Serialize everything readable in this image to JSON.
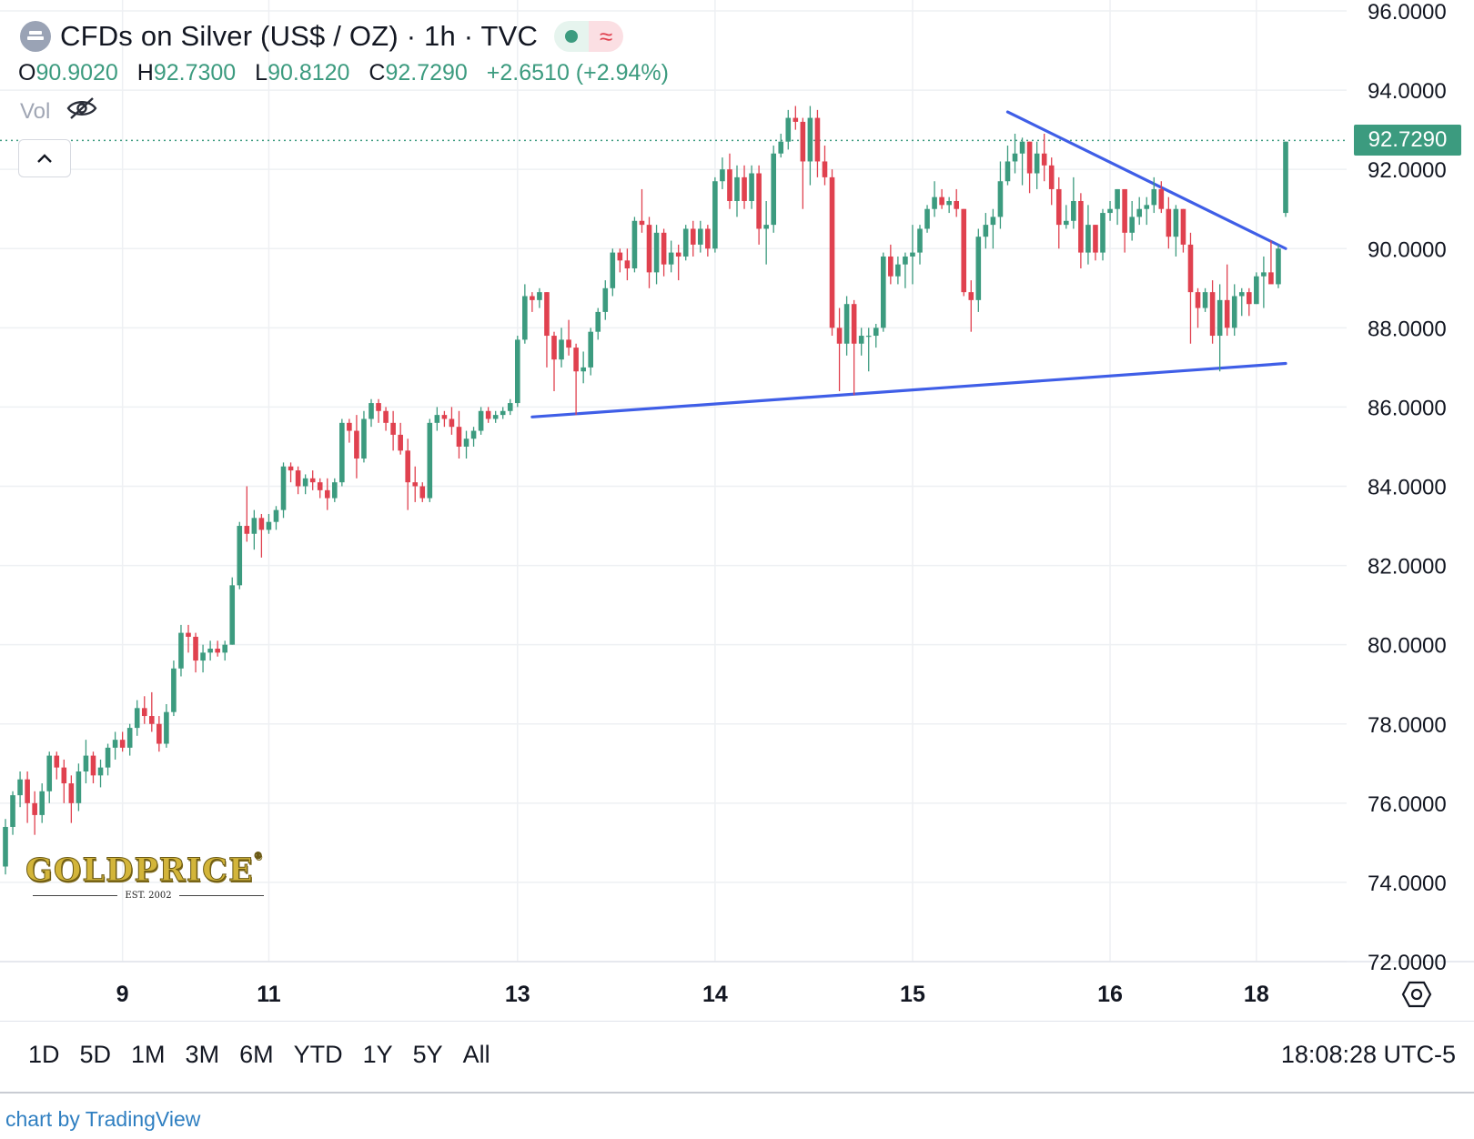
{
  "header": {
    "title": "CFDs on Silver (US$ / OZ) · 1h · TVC",
    "market_status": "open",
    "data_mode_glyph": "≈",
    "symbol_icon": "silver-bars-icon"
  },
  "ohlc": {
    "open_label": "O",
    "open": "90.9020",
    "high_label": "H",
    "high": "92.7300",
    "low_label": "L",
    "low": "90.8120",
    "close_label": "C",
    "close": "92.7290",
    "change": "+2.6510 (+2.94%)"
  },
  "volume": {
    "label": "Vol",
    "icon": "eye-off-icon"
  },
  "collapse_icon": "chevron-up-icon",
  "last_price": "92.7290",
  "colors": {
    "up": "#3c9b7f",
    "down": "#e0414f",
    "trendline": "#3f5ee7",
    "grid": "#eef0f3"
  },
  "watermark": {
    "brand": "GOLDPRICE",
    "reg": "®",
    "est": "EST. 2002"
  },
  "range_buttons": [
    "1D",
    "5D",
    "1M",
    "3M",
    "6M",
    "YTD",
    "1Y",
    "5Y",
    "All"
  ],
  "clock": "18:08:28 UTC-5",
  "credit": "chart by TradingView",
  "chart_data": {
    "type": "candlestick",
    "title": "CFDs on Silver (US$ / OZ)",
    "interval": "1h",
    "ylim": [
      72,
      96
    ],
    "y_ticks": [
      "72.0000",
      "74.0000",
      "76.0000",
      "78.0000",
      "80.0000",
      "82.0000",
      "84.0000",
      "86.0000",
      "88.0000",
      "90.0000",
      "92.0000",
      "94.0000",
      "96.0000"
    ],
    "x_tick_labels": [
      "9",
      "11",
      "13",
      "14",
      "15",
      "16",
      "18"
    ],
    "x_tick_index": [
      16,
      36,
      70,
      97,
      124,
      151,
      171
    ],
    "grid": true,
    "last_price_line": 92.729,
    "candles": [
      [
        74.4,
        75.6,
        74.2,
        75.4
      ],
      [
        75.4,
        76.3,
        75.2,
        76.2
      ],
      [
        76.2,
        76.8,
        75.9,
        76.6
      ],
      [
        76.6,
        76.8,
        75.5,
        76.0
      ],
      [
        76.0,
        76.3,
        75.2,
        75.7
      ],
      [
        75.7,
        76.5,
        75.5,
        76.3
      ],
      [
        76.3,
        77.3,
        76.0,
        77.2
      ],
      [
        77.2,
        77.3,
        76.6,
        76.9
      ],
      [
        76.9,
        77.1,
        76.0,
        76.5
      ],
      [
        76.5,
        76.7,
        75.5,
        76.0
      ],
      [
        76.0,
        77.0,
        75.8,
        76.8
      ],
      [
        76.8,
        77.6,
        76.5,
        77.2
      ],
      [
        77.2,
        77.3,
        76.5,
        76.7
      ],
      [
        76.7,
        77.1,
        76.4,
        76.9
      ],
      [
        76.9,
        77.5,
        76.7,
        77.4
      ],
      [
        77.4,
        77.8,
        77.1,
        77.6
      ],
      [
        77.6,
        77.8,
        77.3,
        77.4
      ],
      [
        77.4,
        78.0,
        77.2,
        77.9
      ],
      [
        77.9,
        78.6,
        77.7,
        78.4
      ],
      [
        78.4,
        78.7,
        78.0,
        78.2
      ],
      [
        78.2,
        78.8,
        77.8,
        78.0
      ],
      [
        78.0,
        78.2,
        77.3,
        77.5
      ],
      [
        77.5,
        78.5,
        77.4,
        78.3
      ],
      [
        78.3,
        79.6,
        78.2,
        79.4
      ],
      [
        79.4,
        80.5,
        79.2,
        80.3
      ],
      [
        80.3,
        80.5,
        79.8,
        80.2
      ],
      [
        80.2,
        80.3,
        79.3,
        79.6
      ],
      [
        79.6,
        80.0,
        79.3,
        79.8
      ],
      [
        79.8,
        80.1,
        79.6,
        79.9
      ],
      [
        79.9,
        80.1,
        79.7,
        79.8
      ],
      [
        79.8,
        80.1,
        79.6,
        80.0
      ],
      [
        80.0,
        81.7,
        80.0,
        81.5
      ],
      [
        81.5,
        83.1,
        81.4,
        83.0
      ],
      [
        83.0,
        84.0,
        82.6,
        82.8
      ],
      [
        82.8,
        83.4,
        82.4,
        83.2
      ],
      [
        83.2,
        83.3,
        82.2,
        82.9
      ],
      [
        82.9,
        83.3,
        82.8,
        83.1
      ],
      [
        83.1,
        83.5,
        82.9,
        83.4
      ],
      [
        83.4,
        84.6,
        83.2,
        84.5
      ],
      [
        84.5,
        84.6,
        84.1,
        84.4
      ],
      [
        84.4,
        84.5,
        83.8,
        84.0
      ],
      [
        84.0,
        84.3,
        83.8,
        84.2
      ],
      [
        84.2,
        84.4,
        83.9,
        84.1
      ],
      [
        84.1,
        84.2,
        83.7,
        83.9
      ],
      [
        83.9,
        84.2,
        83.4,
        83.7
      ],
      [
        83.7,
        84.2,
        83.6,
        84.1
      ],
      [
        84.1,
        85.7,
        84.0,
        85.6
      ],
      [
        85.6,
        85.7,
        85.1,
        85.4
      ],
      [
        85.4,
        85.8,
        84.2,
        84.7
      ],
      [
        84.7,
        85.9,
        84.6,
        85.7
      ],
      [
        85.7,
        86.2,
        85.5,
        86.1
      ],
      [
        86.1,
        86.2,
        85.6,
        85.9
      ],
      [
        85.9,
        86.0,
        85.4,
        85.6
      ],
      [
        85.6,
        85.9,
        84.9,
        85.3
      ],
      [
        85.3,
        85.6,
        84.8,
        84.9
      ],
      [
        84.9,
        85.2,
        83.4,
        84.1
      ],
      [
        84.1,
        84.5,
        83.6,
        84.0
      ],
      [
        84.0,
        84.1,
        83.6,
        83.7
      ],
      [
        83.7,
        85.7,
        83.6,
        85.6
      ],
      [
        85.6,
        86.0,
        85.4,
        85.8
      ],
      [
        85.8,
        85.9,
        85.5,
        85.7
      ],
      [
        85.7,
        86.0,
        85.3,
        85.5
      ],
      [
        85.5,
        85.9,
        84.7,
        85.0
      ],
      [
        85.0,
        85.4,
        84.7,
        85.2
      ],
      [
        85.2,
        85.5,
        85.0,
        85.4
      ],
      [
        85.4,
        86.0,
        85.3,
        85.9
      ],
      [
        85.9,
        86.0,
        85.6,
        85.7
      ],
      [
        85.7,
        85.9,
        85.6,
        85.8
      ],
      [
        85.8,
        86.0,
        85.7,
        85.9
      ],
      [
        85.9,
        86.2,
        85.8,
        86.1
      ],
      [
        86.1,
        87.8,
        86.0,
        87.7
      ],
      [
        87.7,
        89.1,
        87.6,
        88.8
      ],
      [
        88.8,
        88.9,
        88.4,
        88.7
      ],
      [
        88.7,
        89.0,
        88.5,
        88.9
      ],
      [
        88.9,
        88.9,
        87.0,
        87.8
      ],
      [
        87.8,
        87.9,
        86.4,
        87.2
      ],
      [
        87.2,
        88.0,
        87.0,
        87.7
      ],
      [
        87.7,
        88.2,
        87.3,
        87.5
      ],
      [
        87.5,
        87.6,
        85.8,
        86.9
      ],
      [
        86.9,
        87.4,
        86.6,
        87.0
      ],
      [
        87.0,
        88.0,
        86.8,
        87.9
      ],
      [
        87.9,
        88.5,
        87.7,
        88.4
      ],
      [
        88.4,
        89.2,
        88.2,
        89.0
      ],
      [
        89.0,
        90.0,
        88.8,
        89.9
      ],
      [
        89.9,
        90.0,
        89.4,
        89.7
      ],
      [
        89.7,
        90.0,
        89.2,
        89.5
      ],
      [
        89.5,
        90.8,
        89.4,
        90.7
      ],
      [
        90.7,
        91.5,
        90.4,
        90.6
      ],
      [
        90.6,
        90.8,
        89.0,
        89.4
      ],
      [
        89.4,
        90.6,
        89.1,
        90.4
      ],
      [
        90.4,
        90.5,
        89.3,
        89.6
      ],
      [
        89.6,
        90.2,
        89.4,
        89.9
      ],
      [
        89.9,
        90.1,
        89.2,
        89.8
      ],
      [
        89.8,
        90.6,
        89.7,
        90.5
      ],
      [
        90.5,
        90.7,
        89.8,
        90.1
      ],
      [
        90.1,
        90.7,
        89.9,
        90.5
      ],
      [
        90.5,
        90.6,
        89.8,
        90.0
      ],
      [
        90.0,
        91.8,
        89.9,
        91.7
      ],
      [
        91.7,
        92.3,
        91.5,
        92.0
      ],
      [
        92.0,
        92.4,
        91.0,
        91.2
      ],
      [
        91.2,
        92.1,
        90.8,
        91.8
      ],
      [
        91.8,
        92.1,
        91.0,
        91.2
      ],
      [
        91.2,
        92.1,
        91.0,
        91.9
      ],
      [
        91.9,
        92.1,
        90.1,
        90.5
      ],
      [
        90.5,
        91.2,
        89.6,
        90.6
      ],
      [
        90.6,
        92.6,
        90.4,
        92.4
      ],
      [
        92.4,
        92.9,
        92.3,
        92.7
      ],
      [
        92.7,
        93.5,
        92.5,
        93.3
      ],
      [
        93.3,
        93.6,
        93.0,
        93.2
      ],
      [
        93.2,
        93.3,
        91.0,
        92.2
      ],
      [
        92.2,
        93.6,
        91.6,
        93.3
      ],
      [
        93.3,
        93.5,
        91.8,
        92.2
      ],
      [
        92.2,
        92.6,
        91.6,
        91.8
      ],
      [
        91.8,
        92.0,
        87.8,
        88.0
      ],
      [
        88.0,
        88.5,
        86.4,
        87.6
      ],
      [
        87.6,
        88.8,
        87.3,
        88.6
      ],
      [
        88.6,
        88.7,
        86.3,
        87.6
      ],
      [
        87.6,
        88.0,
        87.3,
        87.8
      ],
      [
        87.8,
        88.0,
        86.9,
        87.8
      ],
      [
        87.8,
        88.1,
        87.5,
        88.0
      ],
      [
        88.0,
        89.9,
        87.9,
        89.8
      ],
      [
        89.8,
        90.1,
        89.1,
        89.3
      ],
      [
        89.3,
        89.8,
        89.1,
        89.6
      ],
      [
        89.6,
        89.9,
        89.0,
        89.8
      ],
      [
        89.8,
        90.6,
        89.1,
        89.9
      ],
      [
        89.9,
        90.6,
        89.6,
        90.5
      ],
      [
        90.5,
        91.1,
        90.4,
        91.0
      ],
      [
        91.0,
        91.7,
        90.8,
        91.3
      ],
      [
        91.3,
        91.5,
        91.0,
        91.1
      ],
      [
        91.1,
        91.3,
        90.9,
        91.2
      ],
      [
        91.2,
        91.5,
        90.8,
        91.0
      ],
      [
        91.0,
        91.0,
        88.8,
        88.9
      ],
      [
        88.9,
        89.2,
        87.9,
        88.7
      ],
      [
        88.7,
        90.5,
        88.4,
        90.3
      ],
      [
        90.3,
        90.9,
        90.0,
        90.6
      ],
      [
        90.6,
        91.0,
        90.0,
        90.8
      ],
      [
        90.8,
        92.2,
        90.5,
        91.7
      ],
      [
        91.7,
        92.6,
        91.6,
        92.2
      ],
      [
        92.2,
        92.9,
        91.9,
        92.4
      ],
      [
        92.4,
        92.8,
        91.6,
        92.7
      ],
      [
        92.7,
        92.7,
        91.4,
        91.9
      ],
      [
        91.9,
        92.7,
        91.5,
        92.4
      ],
      [
        92.4,
        92.9,
        91.7,
        92.1
      ],
      [
        92.1,
        92.3,
        91.1,
        91.5
      ],
      [
        91.5,
        91.8,
        90.0,
        90.6
      ],
      [
        90.6,
        91.1,
        90.5,
        90.7
      ],
      [
        90.7,
        91.8,
        90.5,
        91.2
      ],
      [
        91.2,
        91.4,
        89.5,
        89.9
      ],
      [
        89.9,
        91.1,
        89.6,
        90.6
      ],
      [
        90.6,
        90.6,
        89.7,
        89.9
      ],
      [
        89.9,
        91.0,
        89.7,
        90.9
      ],
      [
        90.9,
        91.2,
        90.7,
        91.0
      ],
      [
        91.0,
        91.5,
        90.6,
        91.5
      ],
      [
        91.5,
        91.5,
        89.9,
        90.4
      ],
      [
        90.4,
        91.2,
        90.2,
        90.8
      ],
      [
        90.8,
        91.3,
        90.6,
        91.0
      ],
      [
        91.0,
        91.3,
        90.6,
        91.1
      ],
      [
        91.1,
        91.8,
        90.9,
        91.5
      ],
      [
        91.5,
        91.7,
        90.9,
        91.0
      ],
      [
        91.0,
        91.3,
        90.0,
        90.3
      ],
      [
        90.3,
        91.1,
        89.8,
        91.0
      ],
      [
        91.0,
        91.0,
        89.9,
        90.1
      ],
      [
        90.1,
        90.4,
        87.6,
        88.9
      ],
      [
        88.9,
        89.0,
        88.0,
        88.5
      ],
      [
        88.5,
        89.0,
        88.4,
        88.9
      ],
      [
        88.9,
        89.2,
        87.6,
        87.8
      ],
      [
        87.8,
        89.1,
        86.9,
        88.7
      ],
      [
        88.7,
        89.6,
        87.8,
        88.0
      ],
      [
        88.0,
        89.1,
        87.8,
        88.8
      ],
      [
        88.8,
        89.0,
        88.3,
        88.9
      ],
      [
        88.9,
        89.0,
        88.3,
        88.6
      ],
      [
        88.6,
        89.4,
        88.6,
        89.3
      ],
      [
        89.3,
        89.8,
        88.5,
        89.4
      ],
      [
        89.4,
        90.2,
        89.3,
        89.1
      ],
      [
        89.1,
        90.1,
        89.0,
        90.0
      ],
      [
        90.9,
        92.7,
        90.8,
        92.7
      ]
    ],
    "trendlines": [
      {
        "name": "",
        "from": [
          72,
          85.75
        ],
        "to": [
          175,
          87.1
        ]
      },
      {
        "name": "",
        "from": [
          137,
          93.45
        ],
        "to": [
          175,
          90.0
        ]
      }
    ]
  }
}
